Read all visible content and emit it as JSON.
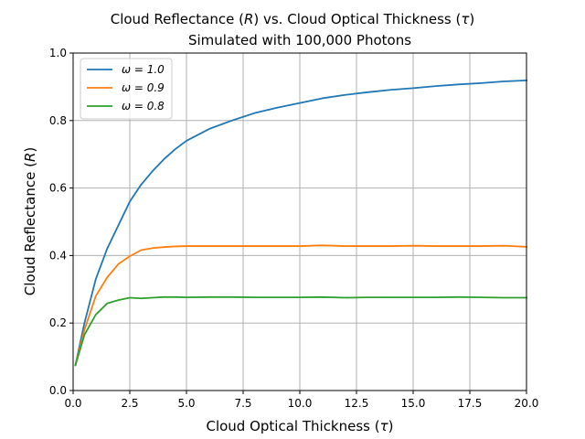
{
  "chart_data": {
    "type": "line",
    "title": "Cloud Reflectance (R) vs. Cloud Optical Thickness (τ)",
    "subtitle": "Simulated with 100,000 Photons",
    "xlabel": "Cloud Optical Thickness (τ)",
    "ylabel": "Cloud Reflectance (R)",
    "xlim": [
      0,
      20
    ],
    "ylim": [
      0,
      1
    ],
    "xticks": [
      0,
      2.5,
      5,
      7.5,
      10,
      12.5,
      15,
      17.5,
      20
    ],
    "xtick_labels": [
      "0.0",
      "2.5",
      "5.0",
      "7.5",
      "10.0",
      "12.5",
      "15.0",
      "17.5",
      "20.0"
    ],
    "yticks": [
      0,
      0.2,
      0.4,
      0.6,
      0.8,
      1.0
    ],
    "ytick_labels": [
      "0.0",
      "0.2",
      "0.4",
      "0.6",
      "0.8",
      "1.0"
    ],
    "grid": true,
    "legend_position": "top-left",
    "x": [
      0.1,
      0.5,
      1.0,
      1.5,
      2.0,
      2.5,
      3.0,
      3.5,
      4.0,
      4.5,
      5.0,
      6.0,
      7.0,
      8.0,
      9.0,
      10.0,
      11.0,
      12.0,
      13.0,
      14.0,
      15.0,
      16.0,
      17.0,
      18.0,
      19.0,
      20.0
    ],
    "series": [
      {
        "name": "ω = 1.0",
        "color": "#1f77b4",
        "values": [
          0.075,
          0.2,
          0.33,
          0.42,
          0.49,
          0.56,
          0.61,
          0.65,
          0.685,
          0.715,
          0.74,
          0.775,
          0.8,
          0.822,
          0.838,
          0.852,
          0.866,
          0.876,
          0.884,
          0.891,
          0.896,
          0.902,
          0.907,
          0.911,
          0.916,
          0.919
        ]
      },
      {
        "name": "ω = 0.9",
        "color": "#ff7f0e",
        "values": [
          0.075,
          0.18,
          0.28,
          0.335,
          0.375,
          0.398,
          0.416,
          0.422,
          0.425,
          0.427,
          0.428,
          0.428,
          0.428,
          0.428,
          0.428,
          0.428,
          0.43,
          0.428,
          0.428,
          0.428,
          0.429,
          0.428,
          0.428,
          0.428,
          0.429,
          0.426
        ]
      },
      {
        "name": "ω = 0.8",
        "color": "#2ca02c",
        "values": [
          0.075,
          0.165,
          0.225,
          0.258,
          0.268,
          0.275,
          0.273,
          0.275,
          0.277,
          0.277,
          0.276,
          0.277,
          0.277,
          0.276,
          0.276,
          0.276,
          0.277,
          0.275,
          0.276,
          0.276,
          0.276,
          0.276,
          0.277,
          0.276,
          0.275,
          0.275
        ]
      }
    ]
  }
}
